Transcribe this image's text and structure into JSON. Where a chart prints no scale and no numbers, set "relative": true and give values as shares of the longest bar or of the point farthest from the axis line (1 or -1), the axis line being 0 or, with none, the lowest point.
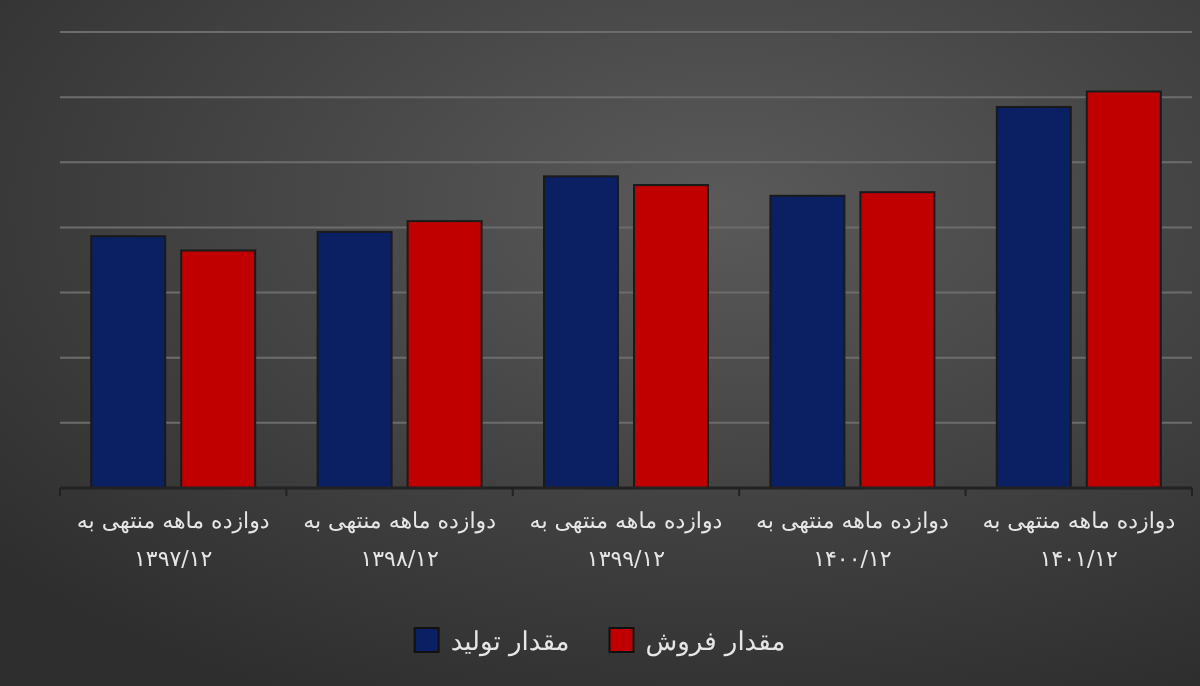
{
  "chart_data": {
    "type": "bar",
    "relative": true,
    "grid": "y",
    "legend": "bottom",
    "categories": [
      "دوازده ماهه منتهی به\n۱۳۹۷/۱۲",
      "دوازده ماهه منتهی به\n۱۳۹۸/۱۲",
      "دوازده ماهه منتهی به\n۱۳۹۹/۱۲",
      "دوازده ماهه منتهی به\n۱۴۰۰/۱۲",
      "دوازده ماهه منتهی به\n۱۴۰۱/۱۲"
    ],
    "series": [
      {
        "name": "مقدار تولید",
        "color": "#0b1f63",
        "values": [
          0.635,
          0.646,
          0.786,
          0.737,
          0.961
        ]
      },
      {
        "name": "مقدار فروش",
        "color": "#c00000",
        "values": [
          0.599,
          0.673,
          0.764,
          0.746,
          1
        ]
      }
    ]
  }
}
